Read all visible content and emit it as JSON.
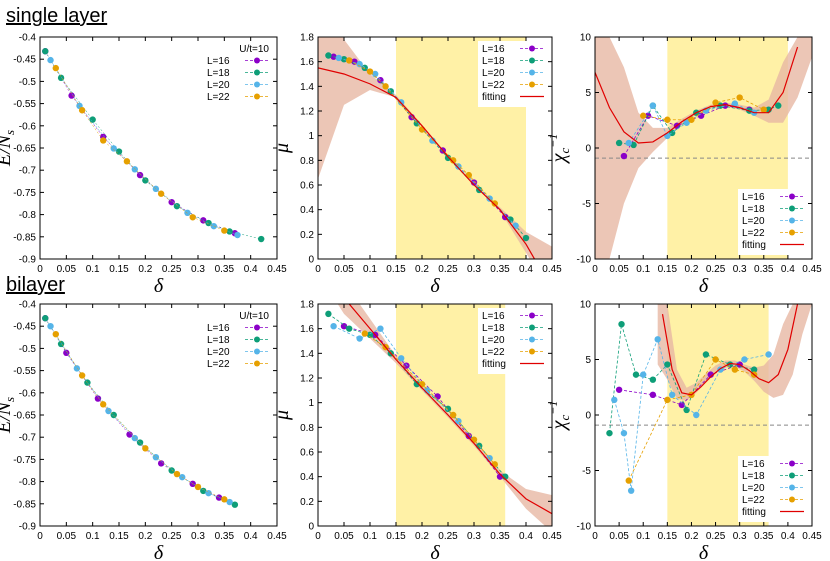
{
  "rows": [
    {
      "title": "single layer"
    },
    {
      "title": "bilayer"
    }
  ],
  "colors": {
    "L16": "#8B00C8",
    "L18": "#0E9E78",
    "L20": "#55B4E8",
    "L22": "#E6A000",
    "fit": "#E00000",
    "band": "#E7B8A4",
    "window": "#FFF1A6"
  },
  "chart_data": [
    {
      "id": "single-energy",
      "type": "scatter",
      "title": "",
      "xlabel": "δ",
      "ylabel": "E/N_s",
      "xlim": [
        0,
        0.45
      ],
      "ylim": [
        -0.9,
        -0.4
      ],
      "xticks": [
        "0",
        "0.05",
        "0.1",
        "0.15",
        "0.2",
        "0.25",
        "0.3",
        "0.35",
        "0.4",
        "0.45"
      ],
      "yticks": [
        "-0.9",
        "-0.85",
        "-0.8",
        "-0.75",
        "-0.7",
        "-0.65",
        "-0.6",
        "-0.55",
        "-0.5",
        "-0.45",
        "-0.4"
      ],
      "legend_title": "U/t=10",
      "legend_position": "top-right",
      "series": [
        {
          "name": "L=16",
          "x": [
            0.01,
            0.06,
            0.12,
            0.19,
            0.25,
            0.31,
            0.37
          ],
          "y": [
            -0.432,
            -0.532,
            -0.625,
            -0.711,
            -0.772,
            -0.813,
            -0.842
          ]
        },
        {
          "name": "L=18",
          "x": [
            0.01,
            0.04,
            0.1,
            0.15,
            0.2,
            0.26,
            0.32,
            0.36,
            0.42
          ],
          "y": [
            -0.432,
            -0.492,
            -0.586,
            -0.658,
            -0.723,
            -0.781,
            -0.819,
            -0.838,
            -0.855
          ]
        },
        {
          "name": "L=20",
          "x": [
            0.02,
            0.075,
            0.14,
            0.18,
            0.22,
            0.28,
            0.33,
            0.375
          ],
          "y": [
            -0.452,
            -0.555,
            -0.651,
            -0.698,
            -0.742,
            -0.796,
            -0.826,
            -0.846
          ]
        },
        {
          "name": "L=22",
          "x": [
            0.03,
            0.08,
            0.12,
            0.165,
            0.23,
            0.29,
            0.35
          ],
          "y": [
            -0.47,
            -0.565,
            -0.633,
            -0.68,
            -0.753,
            -0.806,
            -0.836
          ]
        }
      ]
    },
    {
      "id": "single-mu",
      "type": "line",
      "title": "",
      "xlabel": "δ",
      "ylabel": "μ",
      "xlim": [
        0,
        0.45
      ],
      "ylim": [
        0,
        1.8
      ],
      "xticks": [
        "0",
        "0.05",
        "0.1",
        "0.15",
        "0.2",
        "0.25",
        "0.3",
        "0.35",
        "0.4",
        "0.45"
      ],
      "yticks": [
        "0",
        "0.2",
        "0.4",
        "0.6",
        "0.8",
        "1",
        "1.2",
        "1.4",
        "1.6",
        "1.8"
      ],
      "legend_position": "top-right",
      "fit_window": [
        0.15,
        0.4
      ],
      "series": [
        {
          "name": "L=16",
          "x": [
            0.03,
            0.07,
            0.12,
            0.18,
            0.24,
            0.3,
            0.36
          ],
          "y": [
            1.64,
            1.6,
            1.45,
            1.15,
            0.88,
            0.62,
            0.34
          ]
        },
        {
          "name": "L=18",
          "x": [
            0.02,
            0.05,
            0.09,
            0.14,
            0.19,
            0.25,
            0.31,
            0.37,
            0.4
          ],
          "y": [
            1.65,
            1.62,
            1.55,
            1.36,
            1.1,
            0.82,
            0.56,
            0.32,
            0.17
          ]
        },
        {
          "name": "L=20",
          "x": [
            0.04,
            0.08,
            0.11,
            0.16,
            0.22,
            0.27,
            0.33,
            0.38
          ],
          "y": [
            1.63,
            1.58,
            1.5,
            1.27,
            0.96,
            0.75,
            0.49,
            0.27
          ]
        },
        {
          "name": "L=22",
          "x": [
            0.06,
            0.1,
            0.13,
            0.2,
            0.26,
            0.29,
            0.34
          ],
          "y": [
            1.61,
            1.52,
            1.4,
            1.05,
            0.8,
            0.68,
            0.45
          ]
        },
        {
          "name": "fitting",
          "fit": true,
          "x": [
            0.0,
            0.05,
            0.1,
            0.15,
            0.2,
            0.25,
            0.3,
            0.35,
            0.4,
            0.43
          ],
          "y": [
            1.55,
            1.5,
            1.42,
            1.31,
            1.08,
            0.83,
            0.6,
            0.4,
            0.12,
            -0.1
          ]
        }
      ],
      "band": {
        "x": [
          0.0,
          0.05,
          0.1,
          0.15,
          0.2,
          0.25,
          0.3,
          0.35,
          0.4,
          0.45
        ],
        "lower": [
          0.65,
          1.25,
          1.37,
          1.31,
          1.08,
          0.83,
          0.6,
          0.39,
          0.05,
          -0.3
        ],
        "upper": [
          2.2,
          1.78,
          1.5,
          1.33,
          1.09,
          0.84,
          0.61,
          0.42,
          0.22,
          0.1
        ]
      }
    },
    {
      "id": "single-chi",
      "type": "line",
      "title": "",
      "xlabel": "δ",
      "ylabel": "χ_c^-1",
      "xlim": [
        0,
        0.45
      ],
      "ylim": [
        -10,
        12
      ],
      "xticks": [
        "0",
        "0.05",
        "0.1",
        "0.15",
        "0.2",
        "0.25",
        "0.3",
        "0.35",
        "0.4",
        "0.45"
      ],
      "yticks": [
        "-10",
        "-5",
        "0",
        "5",
        "10"
      ],
      "legend_position": "bottom-right",
      "zero_line": true,
      "fit_window": [
        0.15,
        0.4
      ],
      "series": [
        {
          "name": "L=16",
          "x": [
            0.06,
            0.11,
            0.17,
            0.22,
            0.27,
            0.32
          ],
          "y": [
            0.2,
            4.2,
            3.2,
            4.2,
            5.2,
            4.8
          ]
        },
        {
          "name": "L=18",
          "x": [
            0.05,
            0.08,
            0.12,
            0.16,
            0.21,
            0.26,
            0.32,
            0.36,
            0.38
          ],
          "y": [
            1.5,
            1.3,
            5.2,
            2.5,
            4.5,
            5.2,
            4.7,
            4.8,
            5.2
          ]
        },
        {
          "name": "L=20",
          "x": [
            0.07,
            0.12,
            0.15,
            0.19,
            0.23,
            0.29,
            0.33
          ],
          "y": [
            1.5,
            5.2,
            2.2,
            3.5,
            4.7,
            5.4,
            4.5
          ]
        },
        {
          "name": "L=22",
          "x": [
            0.1,
            0.15,
            0.2,
            0.25,
            0.3,
            0.35
          ],
          "y": [
            4.2,
            3.8,
            3.8,
            5.5,
            6.0,
            4.8
          ]
        },
        {
          "name": "fitting",
          "fit": true,
          "x": [
            0.0,
            0.03,
            0.06,
            0.09,
            0.12,
            0.15,
            0.18,
            0.21,
            0.24,
            0.27,
            0.3,
            0.33,
            0.36,
            0.39,
            0.42
          ],
          "y": [
            8.5,
            5.0,
            2.6,
            1.5,
            1.6,
            2.5,
            3.6,
            4.5,
            5.1,
            5.3,
            5.0,
            4.5,
            4.5,
            6.5,
            11.0
          ]
        }
      ],
      "band": {
        "x": [
          0.0,
          0.03,
          0.06,
          0.09,
          0.12,
          0.15,
          0.18,
          0.21,
          0.24,
          0.27,
          0.3,
          0.33,
          0.36,
          0.39,
          0.42,
          0.45
        ],
        "lower": [
          -10,
          -10,
          -4.5,
          -1.0,
          0.6,
          2.0,
          3.3,
          4.3,
          4.9,
          5.1,
          4.8,
          4.2,
          3.5,
          3.5,
          6.0,
          10.0
        ],
        "upper": [
          12,
          12,
          9.0,
          4.5,
          3.0,
          3.0,
          3.9,
          4.7,
          5.3,
          5.5,
          5.3,
          5.0,
          5.8,
          9.5,
          12,
          12
        ]
      }
    },
    {
      "id": "bilayer-energy",
      "type": "scatter",
      "title": "",
      "xlabel": "δ",
      "ylabel": "E/N_s",
      "xlim": [
        0,
        0.45
      ],
      "ylim": [
        -0.9,
        -0.4
      ],
      "xticks": [
        "0",
        "0.05",
        "0.1",
        "0.15",
        "0.2",
        "0.25",
        "0.3",
        "0.35",
        "0.4",
        "0.45"
      ],
      "yticks": [
        "-0.9",
        "-0.85",
        "-0.8",
        "-0.75",
        "-0.7",
        "-0.65",
        "-0.6",
        "-0.55",
        "-0.5",
        "-0.45",
        "-0.4"
      ],
      "legend_title": "U/t=10",
      "legend_position": "top-right",
      "series": [
        {
          "name": "L=16",
          "x": [
            0.01,
            0.05,
            0.11,
            0.17,
            0.23,
            0.29,
            0.34
          ],
          "y": [
            -0.432,
            -0.51,
            -0.613,
            -0.694,
            -0.759,
            -0.805,
            -0.836
          ]
        },
        {
          "name": "L=18",
          "x": [
            0.01,
            0.04,
            0.09,
            0.14,
            0.19,
            0.25,
            0.31,
            0.37
          ],
          "y": [
            -0.432,
            -0.49,
            -0.577,
            -0.65,
            -0.712,
            -0.775,
            -0.821,
            -0.852
          ]
        },
        {
          "name": "L=20",
          "x": [
            0.02,
            0.07,
            0.13,
            0.18,
            0.22,
            0.27,
            0.32,
            0.36
          ],
          "y": [
            -0.45,
            -0.545,
            -0.641,
            -0.702,
            -0.745,
            -0.79,
            -0.826,
            -0.846
          ]
        },
        {
          "name": "L=22",
          "x": [
            0.03,
            0.08,
            0.12,
            0.2,
            0.26,
            0.3,
            0.35
          ],
          "y": [
            -0.468,
            -0.561,
            -0.626,
            -0.725,
            -0.783,
            -0.812,
            -0.84
          ]
        }
      ]
    },
    {
      "id": "bilayer-mu",
      "type": "line",
      "title": "",
      "xlabel": "δ",
      "ylabel": "μ",
      "xlim": [
        0,
        0.45
      ],
      "ylim": [
        0,
        1.8
      ],
      "xticks": [
        "0",
        "0.05",
        "0.1",
        "0.15",
        "0.2",
        "0.25",
        "0.3",
        "0.35",
        "0.4",
        "0.45"
      ],
      "yticks": [
        "0",
        "0.2",
        "0.4",
        "0.6",
        "0.8",
        "1",
        "1.2",
        "1.4",
        "1.6",
        "1.8"
      ],
      "legend_position": "top-right",
      "fit_window": [
        0.15,
        0.36
      ],
      "series": [
        {
          "name": "L=16",
          "x": [
            0.05,
            0.11,
            0.17,
            0.23,
            0.29,
            0.35
          ],
          "y": [
            1.62,
            1.55,
            1.3,
            1.05,
            0.73,
            0.4
          ]
        },
        {
          "name": "L=18",
          "x": [
            0.02,
            0.06,
            0.1,
            0.14,
            0.19,
            0.25,
            0.31,
            0.36
          ],
          "y": [
            1.72,
            1.6,
            1.55,
            1.4,
            1.15,
            0.95,
            0.65,
            0.4
          ]
        },
        {
          "name": "L=20",
          "x": [
            0.03,
            0.08,
            0.12,
            0.16,
            0.21,
            0.27,
            0.33
          ],
          "y": [
            1.62,
            1.52,
            1.6,
            1.36,
            1.1,
            0.85,
            0.55
          ]
        },
        {
          "name": "L=22",
          "x": [
            0.09,
            0.13,
            0.2,
            0.26,
            0.3,
            0.34
          ],
          "y": [
            1.56,
            1.45,
            1.15,
            0.9,
            0.7,
            0.5
          ]
        },
        {
          "name": "fitting",
          "fit": true,
          "x": [
            0.0,
            0.05,
            0.1,
            0.15,
            0.2,
            0.25,
            0.3,
            0.35,
            0.4,
            0.45
          ],
          "y": [
            2.2,
            1.85,
            1.6,
            1.35,
            1.12,
            0.9,
            0.67,
            0.42,
            0.22,
            0.1
          ]
        }
      ],
      "band": {
        "x": [
          0.0,
          0.05,
          0.1,
          0.15,
          0.2,
          0.25,
          0.3,
          0.35,
          0.4,
          0.45
        ],
        "lower": [
          2.05,
          1.72,
          1.52,
          1.32,
          1.1,
          0.88,
          0.65,
          0.4,
          0.14,
          -0.05
        ],
        "upper": [
          2.4,
          1.98,
          1.68,
          1.38,
          1.14,
          0.92,
          0.7,
          0.45,
          0.3,
          0.25
        ]
      }
    },
    {
      "id": "bilayer-chi",
      "type": "line",
      "title": "",
      "xlabel": "δ",
      "ylabel": "χ_c^-1",
      "xlim": [
        0,
        0.45
      ],
      "ylim": [
        -10,
        12
      ],
      "xticks": [
        "0",
        "0.05",
        "0.1",
        "0.15",
        "0.2",
        "0.25",
        "0.3",
        "0.35",
        "0.4",
        "0.45"
      ],
      "yticks": [
        "-10",
        "-5",
        "0",
        "5",
        "10"
      ],
      "legend_position": "bottom-right",
      "zero_line": true,
      "fit_window": [
        0.15,
        0.36
      ],
      "series": [
        {
          "name": "L=16",
          "x": [
            0.05,
            0.12,
            0.18,
            0.24,
            0.3
          ],
          "y": [
            3.5,
            3.0,
            2.0,
            5.0,
            6.0
          ]
        },
        {
          "name": "L=18",
          "x": [
            0.03,
            0.055,
            0.085,
            0.12,
            0.15,
            0.19,
            0.23,
            0.28,
            0.33
          ],
          "y": [
            -0.8,
            10.0,
            5.0,
            4.5,
            6.0,
            1.5,
            7.0,
            6.0,
            5.5
          ]
        },
        {
          "name": "L=20",
          "x": [
            0.04,
            0.06,
            0.075,
            0.1,
            0.13,
            0.16,
            0.21,
            0.26,
            0.31,
            0.36
          ],
          "y": [
            2.5,
            -0.8,
            -6.5,
            5.0,
            8.5,
            3.0,
            1.0,
            5.5,
            6.5,
            7.0
          ]
        },
        {
          "name": "L=22",
          "x": [
            0.07,
            0.15,
            0.2,
            0.25,
            0.29,
            0.33
          ],
          "y": [
            -5.5,
            2.5,
            3.0,
            6.5,
            5.5,
            5.0
          ]
        },
        {
          "name": "fitting",
          "fit": true,
          "x": [
            0.14,
            0.16,
            0.18,
            0.2,
            0.22,
            0.24,
            0.26,
            0.28,
            0.3,
            0.32,
            0.34,
            0.36,
            0.38,
            0.4,
            0.42
          ],
          "y": [
            11.0,
            5.5,
            3.2,
            3.0,
            3.8,
            4.8,
            5.6,
            6.1,
            6.0,
            5.4,
            4.6,
            4.2,
            5.0,
            7.5,
            12.0
          ]
        }
      ],
      "band": {
        "x": [
          0.13,
          0.15,
          0.17,
          0.19,
          0.21,
          0.23,
          0.25,
          0.27,
          0.29,
          0.31,
          0.33,
          0.35,
          0.37,
          0.39,
          0.41,
          0.43,
          0.45
        ],
        "lower": [
          6.0,
          4.5,
          2.6,
          2.4,
          3.2,
          4.2,
          5.1,
          5.7,
          5.8,
          5.3,
          4.4,
          3.3,
          2.7,
          3.0,
          5.0,
          9.0,
          12.0
        ],
        "upper": [
          12.0,
          12.0,
          5.5,
          3.7,
          4.2,
          5.1,
          5.9,
          6.4,
          6.4,
          6.0,
          5.7,
          5.9,
          7.0,
          10.0,
          12.0,
          12.0,
          12.0
        ]
      }
    }
  ]
}
